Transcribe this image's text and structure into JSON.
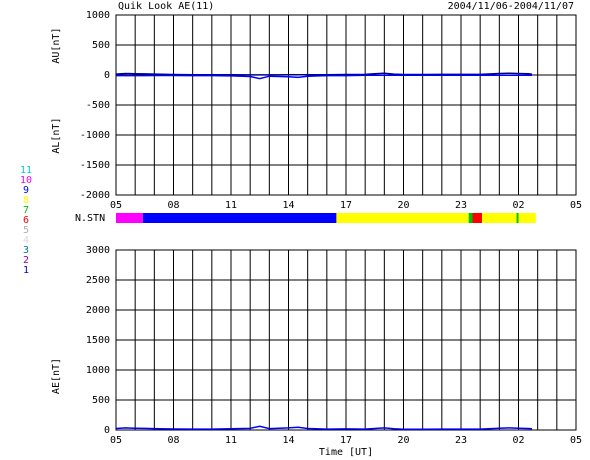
{
  "chart_data": [
    {
      "type": "line",
      "title": "Quik Look AE(11)",
      "subtitle": "2004/11/06-2004/11/07",
      "y_labels": [
        "AU[nT]",
        "AL[nT]"
      ],
      "x": [
        0,
        0.5,
        1,
        1.5,
        2,
        3,
        4,
        5,
        6,
        7,
        7.5,
        8,
        9,
        9.5,
        10,
        11,
        12,
        13,
        13.5,
        14,
        14.5,
        15,
        16,
        17,
        18,
        19,
        20,
        20.5,
        21,
        21.5,
        21.7
      ],
      "series": [
        {
          "name": "AU",
          "color": "#000080",
          "values": [
            15,
            25,
            20,
            18,
            15,
            8,
            5,
            5,
            5,
            3,
            2,
            3,
            5,
            5,
            5,
            5,
            8,
            10,
            20,
            30,
            15,
            8,
            8,
            10,
            10,
            10,
            25,
            30,
            25,
            20,
            15
          ]
        },
        {
          "name": "AL",
          "color": "#0000ff",
          "values": [
            -10,
            -10,
            -10,
            -10,
            -8,
            -8,
            -10,
            -10,
            -15,
            -25,
            -60,
            -20,
            -30,
            -40,
            -20,
            -10,
            -10,
            -5,
            -5,
            -5,
            -5,
            -5,
            -5,
            -5,
            -5,
            -5,
            -5,
            -5,
            -5,
            -5,
            -5
          ]
        }
      ],
      "xlim": [
        0,
        24
      ],
      "xticks": [
        {
          "value": 0,
          "label": "05"
        },
        {
          "value": 3,
          "label": "08"
        },
        {
          "value": 6,
          "label": "11"
        },
        {
          "value": 9,
          "label": "14"
        },
        {
          "value": 12,
          "label": "17"
        },
        {
          "value": 15,
          "label": "20"
        },
        {
          "value": 18,
          "label": "23"
        },
        {
          "value": 21,
          "label": "02"
        },
        {
          "value": 24,
          "label": "05"
        }
      ],
      "xgrid": [
        1,
        2,
        4,
        5,
        7,
        8,
        10,
        11,
        13,
        14,
        16,
        17,
        19,
        20,
        22,
        23
      ],
      "ylim": [
        -2000,
        1000
      ],
      "yticks": [
        -2000,
        -1500,
        -1000,
        -500,
        0,
        500,
        1000
      ],
      "grid": true
    },
    {
      "type": "station",
      "label": "N.STN",
      "legend": [
        {
          "name": "11",
          "color": "#00d0d0"
        },
        {
          "name": "10",
          "color": "#ff00ff"
        },
        {
          "name": "9",
          "color": "#0000ff"
        },
        {
          "name": "8",
          "color": "#ffff00"
        },
        {
          "name": "7",
          "color": "#00c000"
        },
        {
          "name": "6",
          "color": "#ff0000"
        },
        {
          "name": "5",
          "color": "#b0b0b0"
        },
        {
          "name": "4",
          "color": "#d8d8d8"
        },
        {
          "name": "3",
          "color": "#008080"
        },
        {
          "name": "2",
          "color": "#a000a0"
        },
        {
          "name": "1",
          "color": "#0000c0"
        }
      ],
      "segments": [
        {
          "start": 0,
          "end": 1.4,
          "station": 10
        },
        {
          "start": 1.4,
          "end": 11.5,
          "station": 9
        },
        {
          "start": 11.5,
          "end": 18.4,
          "station": 8
        },
        {
          "start": 18.4,
          "end": 18.6,
          "station": 7
        },
        {
          "start": 18.6,
          "end": 19.1,
          "station": 6
        },
        {
          "start": 19.1,
          "end": 20.9,
          "station": 8
        },
        {
          "start": 20.9,
          "end": 21,
          "station": 7
        },
        {
          "start": 21,
          "end": 21.9,
          "station": 8
        }
      ],
      "xlim": [
        0,
        24
      ]
    },
    {
      "type": "line",
      "y_labels": [
        "AE[nT]"
      ],
      "x_label": "Time [UT]",
      "x": [
        0,
        0.5,
        1,
        1.5,
        2,
        3,
        4,
        5,
        6,
        7,
        7.5,
        8,
        9,
        9.5,
        10,
        11,
        12,
        13,
        13.5,
        14,
        14.5,
        15,
        16,
        17,
        18,
        19,
        20,
        20.5,
        21,
        21.5,
        21.7
      ],
      "series": [
        {
          "name": "AE",
          "color": "#0000ff",
          "values": [
            25,
            35,
            30,
            28,
            23,
            16,
            15,
            15,
            20,
            28,
            62,
            23,
            35,
            45,
            25,
            15,
            18,
            15,
            25,
            35,
            20,
            13,
            13,
            15,
            15,
            15,
            30,
            35,
            30,
            25,
            20
          ]
        }
      ],
      "xlim": [
        0,
        24
      ],
      "xticks": [
        {
          "value": 0,
          "label": "05"
        },
        {
          "value": 3,
          "label": "08"
        },
        {
          "value": 6,
          "label": "11"
        },
        {
          "value": 9,
          "label": "14"
        },
        {
          "value": 12,
          "label": "17"
        },
        {
          "value": 15,
          "label": "20"
        },
        {
          "value": 18,
          "label": "23"
        },
        {
          "value": 21,
          "label": "02"
        },
        {
          "value": 24,
          "label": "05"
        }
      ],
      "xgrid": [
        1,
        2,
        4,
        5,
        7,
        8,
        10,
        11,
        13,
        14,
        16,
        17,
        19,
        20,
        22,
        23
      ],
      "ylim": [
        0,
        3000
      ],
      "yticks": [
        0,
        500,
        1000,
        1500,
        2000,
        2500,
        3000
      ],
      "grid": true
    }
  ]
}
